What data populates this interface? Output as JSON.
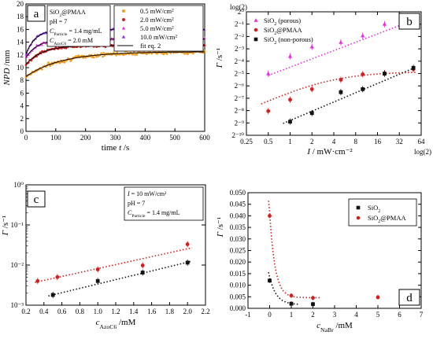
{
  "chart_data": [
    {
      "panel": "a",
      "type": "scatter",
      "xlabel": "time t /s",
      "ylabel": "NPD /mm",
      "xlim": [
        0,
        600
      ],
      "ylim": [
        0,
        20
      ],
      "xticks": [
        "0",
        "100",
        "200",
        "300",
        "400",
        "500",
        "600"
      ],
      "yticks": [
        "0",
        "2",
        "4",
        "6",
        "8",
        "10",
        "12",
        "14",
        "16",
        "18",
        "20"
      ],
      "annotation": [
        "SiO2@PMAA",
        "pH = 7",
        "CParticle = 1.4 mg/mL",
        "CAzoC6 = 2.0 mM"
      ],
      "legend": {
        "placement": "top-right",
        "fit_label": "fit eq. 2"
      },
      "series": [
        {
          "name": "0.5 mW/cm²",
          "color": "#f39c1f",
          "marker": "circle",
          "y0": 8.6,
          "yinf": 12.5,
          "tau": 120,
          "noise": 0.45
        },
        {
          "name": "2.0 mW/cm²",
          "color": "#d41e1e",
          "marker": "circle",
          "y0": 10.5,
          "yinf": 13.5,
          "tau": 55,
          "noise": 0.3
        },
        {
          "name": "5.0 mW/cm²",
          "color": "#e82be0",
          "marker": "triangle",
          "y0": 11.6,
          "yinf": 14.5,
          "tau": 40,
          "noise": 0.3
        },
        {
          "name": "10.0 mW/cm²",
          "color": "#8a2be2",
          "marker": "triangle",
          "y0": 12.1,
          "yinf": 16.0,
          "tau": 32,
          "noise": 0.3
        }
      ]
    },
    {
      "panel": "b",
      "type": "scatter",
      "xscale": "log2",
      "yscale": "log2",
      "xlabel": "I / mW·cm⁻²",
      "ylabel": "Γ /s⁻¹",
      "top_axis_label": "log(2)",
      "right_axis_label": "log(2)",
      "xticks": [
        "0.25",
        "0.5",
        "1",
        "2",
        "4",
        "8",
        "16",
        "32",
        "64"
      ],
      "yticks": [
        "2⁻¹⁰",
        "2⁻⁹",
        "2⁻⁸",
        "2⁻⁷",
        "2⁻⁶",
        "2⁻⁵",
        "2⁻⁴",
        "2⁻³",
        "2⁻²",
        "2⁻¹",
        "2⁰"
      ],
      "legend": {
        "placement": "top-left"
      },
      "series": [
        {
          "name": "SiO2 (porous)",
          "color": "#e82be0",
          "marker": "triangle",
          "x": [
            0.5,
            1,
            2,
            5,
            10,
            20,
            50
          ],
          "y": [
            0.031,
            0.082,
            0.14,
            0.18,
            0.26,
            0.5,
            0.61
          ]
        },
        {
          "name": "SiO2@PMAA",
          "color": "#d41e1e",
          "marker": "circle",
          "x": [
            0.5,
            1,
            2,
            5,
            10,
            20,
            50
          ],
          "y": [
            0.0038,
            0.0072,
            0.013,
            0.022,
            0.03,
            0.032,
            0.04
          ]
        },
        {
          "name": "SiO2 (non-porous)",
          "color": "#111111",
          "marker": "square",
          "x": [
            1,
            2,
            5,
            10,
            20,
            50
          ],
          "y": [
            0.0021,
            0.0034,
            0.011,
            0.013,
            0.031,
            0.043
          ]
        }
      ]
    },
    {
      "panel": "c",
      "type": "scatter",
      "yscale": "log",
      "xlabel": "cAzoC6 /mM",
      "ylabel": "Γ /s⁻¹",
      "xlim": [
        0.2,
        2.2
      ],
      "ylim": [
        0.001,
        1
      ],
      "xticks": [
        "0.2",
        "0.4",
        "0.6",
        "0.8",
        "1.0",
        "1.2",
        "1.4",
        "1.6",
        "1.8",
        "2.0",
        "2.2"
      ],
      "yticks": [
        "10⁻³",
        "10⁻²",
        "10⁻¹",
        "10⁰"
      ],
      "annotation": [
        "I = 10 mW/cm²",
        "pH = 7",
        "CParticle = 1.4 mg/mL"
      ],
      "series": [
        {
          "name": "SiO2@PMAA",
          "color": "#d41e1e",
          "marker": "circle",
          "x": [
            0.33,
            0.55,
            1.0,
            1.5,
            2.0
          ],
          "y": [
            0.004,
            0.005,
            0.0078,
            0.0098,
            0.033
          ]
        },
        {
          "name": "SiO2",
          "color": "#111111",
          "marker": "square",
          "x": [
            0.5,
            1.0,
            1.5,
            2.0
          ],
          "y": [
            0.0018,
            0.004,
            0.0065,
            0.0115
          ]
        }
      ]
    },
    {
      "panel": "d",
      "type": "scatter",
      "xlabel": "cNaBr /mM",
      "ylabel": "Γ /s⁻¹",
      "xlim": [
        -1,
        7
      ],
      "ylim": [
        0,
        0.05
      ],
      "xticks": [
        "-1",
        "0",
        "1",
        "2",
        "3",
        "4",
        "5",
        "6",
        "7"
      ],
      "yticks": [
        "0.000",
        "0.005",
        "0.010",
        "0.015",
        "0.020",
        "0.025",
        "0.030",
        "0.035",
        "0.040",
        "0.045",
        "0.050"
      ],
      "legend": {
        "placement": "top-right"
      },
      "series": [
        {
          "name": "SiO2",
          "color": "#111111",
          "marker": "square",
          "x": [
            0,
            1,
            2
          ],
          "y": [
            0.012,
            0.002,
            0.0018
          ]
        },
        {
          "name": "SiO2@PMAA",
          "color": "#d41e1e",
          "marker": "circle",
          "x": [
            0,
            1,
            2,
            5
          ],
          "y": [
            0.04,
            0.0055,
            0.0045,
            0.0048
          ]
        }
      ]
    }
  ]
}
